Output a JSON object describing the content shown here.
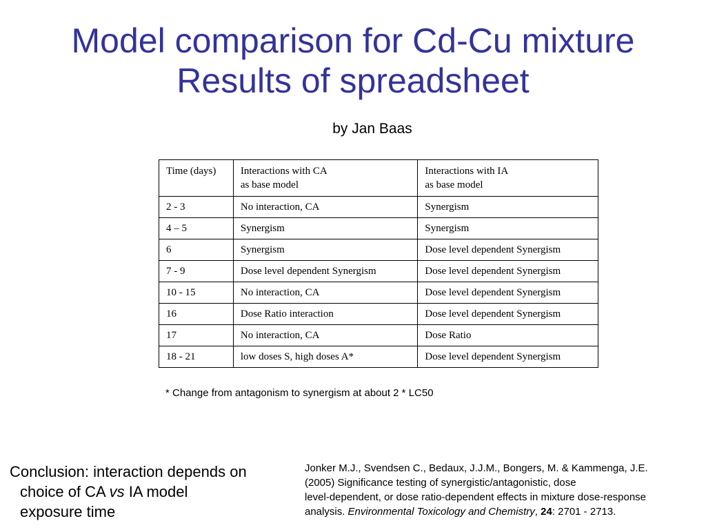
{
  "slide": {
    "title_line1": "Model comparison for Cd-Cu mixture",
    "title_line2": "Results of spreadsheet",
    "byline": "by Jan Baas",
    "title_color": "#333399"
  },
  "table": {
    "header": {
      "col1": "Time (days)",
      "col2_line1": "Interactions with CA",
      "col2_line2": "as base model",
      "col3_line1": "Interactions with IA",
      "col3_line2": "as base model"
    },
    "rows": [
      {
        "time": "2 - 3",
        "ca": "No interaction, CA",
        "ia": "Synergism"
      },
      {
        "time": "4 – 5",
        "ca": "Synergism",
        "ia": "Synergism"
      },
      {
        "time": "6",
        "ca": "Synergism",
        "ia": "Dose level dependent Synergism"
      },
      {
        "time": "7 - 9",
        "ca": "Dose level dependent Synergism",
        "ia": "Dose level dependent Synergism"
      },
      {
        "time": "10 - 15",
        "ca": "No interaction, CA",
        "ia": "Dose level dependent Synergism"
      },
      {
        "time": "16",
        "ca": "Dose Ratio interaction",
        "ia": "Dose level dependent Synergism"
      },
      {
        "time": "17",
        "ca": "No interaction, CA",
        "ia": "Dose Ratio"
      },
      {
        "time": "18 - 21",
        "ca": "low doses S, high doses A*",
        "ia": "Dose level dependent Synergism"
      }
    ]
  },
  "footnote": "* Change from antagonism to synergism at about 2 * LC50",
  "conclusion": {
    "line1": "Conclusion: interaction depends on",
    "line2_prefix": "choice of CA ",
    "line2_italic": "vs",
    "line2_suffix": " IA model",
    "line3": "exposure time"
  },
  "reference": {
    "line1": "Jonker M.J., Svendsen C., Bedaux, J.J.M., Bongers, M. & Kammenga, J.E.",
    "line2": "(2005) Significance testing of synergistic/antagonistic, dose",
    "line3": "level-dependent, or dose ratio-dependent effects in mixture dose-response",
    "line4_prefix": "analysis. ",
    "journal": "Environmental Toxicology and Chemistry",
    "sep1": ", ",
    "volume": "24",
    "pages": ": 2701 - 2713."
  }
}
